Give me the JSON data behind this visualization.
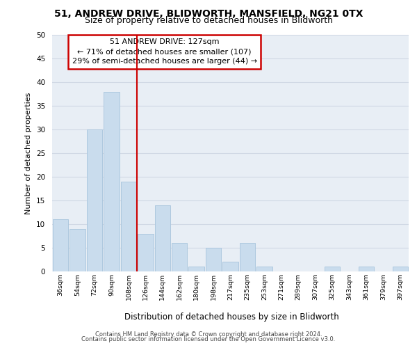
{
  "title_line1": "51, ANDREW DRIVE, BLIDWORTH, MANSFIELD, NG21 0TX",
  "title_line2": "Size of property relative to detached houses in Blidworth",
  "xlabel": "Distribution of detached houses by size in Blidworth",
  "ylabel": "Number of detached properties",
  "bar_labels": [
    "36sqm",
    "54sqm",
    "72sqm",
    "90sqm",
    "108sqm",
    "126sqm",
    "144sqm",
    "162sqm",
    "180sqm",
    "198sqm",
    "217sqm",
    "235sqm",
    "253sqm",
    "271sqm",
    "289sqm",
    "307sqm",
    "325sqm",
    "343sqm",
    "361sqm",
    "379sqm",
    "397sqm"
  ],
  "bar_values": [
    11,
    9,
    30,
    38,
    19,
    8,
    14,
    6,
    1,
    5,
    2,
    6,
    1,
    0,
    0,
    0,
    1,
    0,
    1,
    0,
    1
  ],
  "bar_color": "#c9dced",
  "bar_edge_color": "#a8c4dc",
  "vline_index": 5,
  "annotation_line1": "51 ANDREW DRIVE: 127sqm",
  "annotation_line2": "← 71% of detached houses are smaller (107)",
  "annotation_line3": "29% of semi-detached houses are larger (44) →",
  "annotation_box_color": "#ffffff",
  "annotation_box_edge_color": "#cc0000",
  "ylim": [
    0,
    50
  ],
  "yticks": [
    0,
    5,
    10,
    15,
    20,
    25,
    30,
    35,
    40,
    45,
    50
  ],
  "grid_color": "#d0d8e4",
  "bg_color": "#e8eef5",
  "title_fontsize": 10,
  "subtitle_fontsize": 9,
  "footer_line1": "Contains HM Land Registry data © Crown copyright and database right 2024.",
  "footer_line2": "Contains public sector information licensed under the Open Government Licence v3.0."
}
